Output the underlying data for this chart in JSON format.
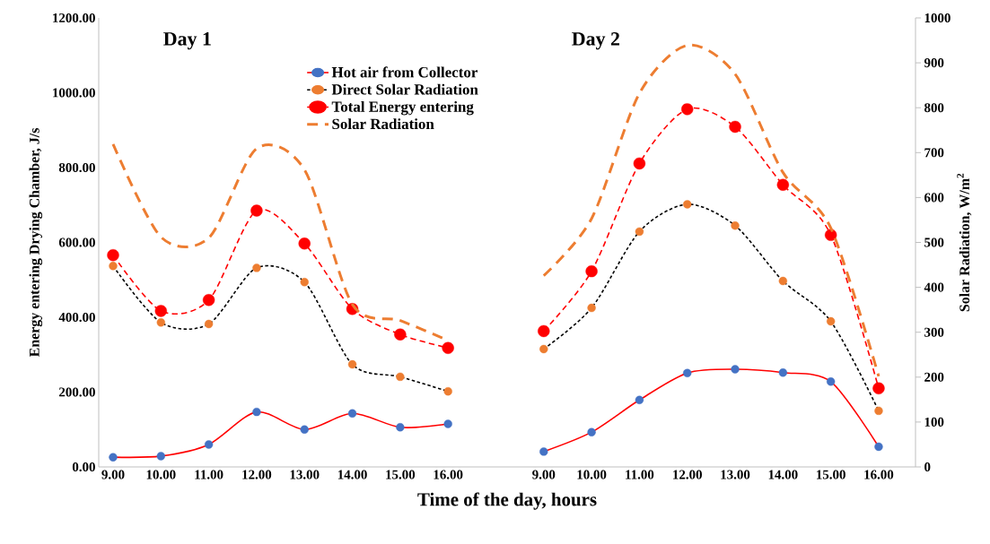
{
  "chart_data": {
    "type": "line",
    "xlabel": "Time of the day, hours",
    "ylabel": "Energy entering Drying Chamber, J/s",
    "y2label": "Solar Radiation, W/m$^{2}$",
    "categories": [
      "9.00",
      "10.00",
      "11.00",
      "12.00",
      "13.00",
      "14.00",
      "15.00",
      "16.00",
      null,
      "9.00",
      "10.00",
      "11.00",
      "12.00",
      "13.00",
      "14.00",
      "15.00",
      "16.00"
    ],
    "annotations": [
      "Day 1",
      "Day 2"
    ],
    "ylim": [
      0,
      1200
    ],
    "yticks": [
      {
        "value": 0,
        "label": "0.00"
      },
      {
        "value": 200,
        "label": "200.00"
      },
      {
        "value": 400,
        "label": "400.00"
      },
      {
        "value": 600,
        "label": "600.00"
      },
      {
        "value": 800,
        "label": "800.00"
      },
      {
        "value": 1000,
        "label": "1000.00"
      },
      {
        "value": 1200,
        "label": "1200.00"
      }
    ],
    "y2lim": [
      0,
      1000
    ],
    "y2ticks": [
      0,
      100,
      200,
      300,
      400,
      500,
      600,
      700,
      800,
      900,
      1000
    ],
    "grid": false,
    "legend": "top",
    "series": [
      {
        "name": "Hot air from Collector",
        "color": "#ff0000",
        "colors": [
          "#4472c4",
          "#4472c4",
          "#4472c4",
          "#4472c4",
          "#4472c4",
          "#4472c4",
          "#4472c4",
          "#4472c4",
          null,
          "#4472c4",
          "#4472c4",
          "#4472c4",
          "#4472c4",
          "#4472c4",
          "#4472c4",
          "#4472c4",
          "#4472c4"
        ],
        "marker": "circle",
        "line_style": "solid",
        "values": [
          26,
          29,
          60,
          147,
          100,
          143,
          106,
          115,
          null,
          41,
          93,
          179,
          251,
          261,
          252,
          228,
          54
        ]
      },
      {
        "name": "Direct Solar Radiation",
        "color": "#000000",
        "colors": [
          "#ed7d31",
          "#ed7d31",
          "#ed7d31",
          "#ed7d31",
          "#ed7d31",
          "#ed7d31",
          "#ed7d31",
          "#ed7d31",
          null,
          "#ed7d31",
          "#ed7d31",
          "#ed7d31",
          "#ed7d31",
          "#ed7d31",
          "#ed7d31",
          "#ed7d31",
          "#ed7d31"
        ],
        "marker": "circle",
        "line_style": "dotted",
        "values": [
          537,
          386,
          382,
          532,
          494,
          274,
          241,
          202,
          null,
          315,
          425,
          629,
          702,
          645,
          497,
          389,
          150
        ]
      },
      {
        "name": "Total Energy entering",
        "color": "#ff0000",
        "colors": [
          "#ff0000",
          "#ff0000",
          "#ff0000",
          "#ff0000",
          "#ff0000",
          "#ff0000",
          "#ff0000",
          "#ff0000",
          null,
          "#ff0000",
          "#ff0000",
          "#ff0000",
          "#ff0000",
          "#ff0000",
          "#ff0000",
          "#ff0000",
          "#ff0000"
        ],
        "marker": "circle",
        "line_style": "dashed",
        "values": [
          566,
          417,
          446,
          685,
          597,
          422,
          354,
          318,
          null,
          363,
          523,
          811,
          956,
          909,
          754,
          620,
          210
        ]
      },
      {
        "name": "Solar Radiation",
        "color": "#ed7d31",
        "axis": "y2",
        "marker": "none",
        "line_style": "dashed",
        "values": [
          719,
          512,
          510,
          709,
          662,
          362,
          326,
          282,
          null,
          426,
          553,
          832,
          939,
          875,
          656,
          532,
          202
        ]
      }
    ]
  }
}
